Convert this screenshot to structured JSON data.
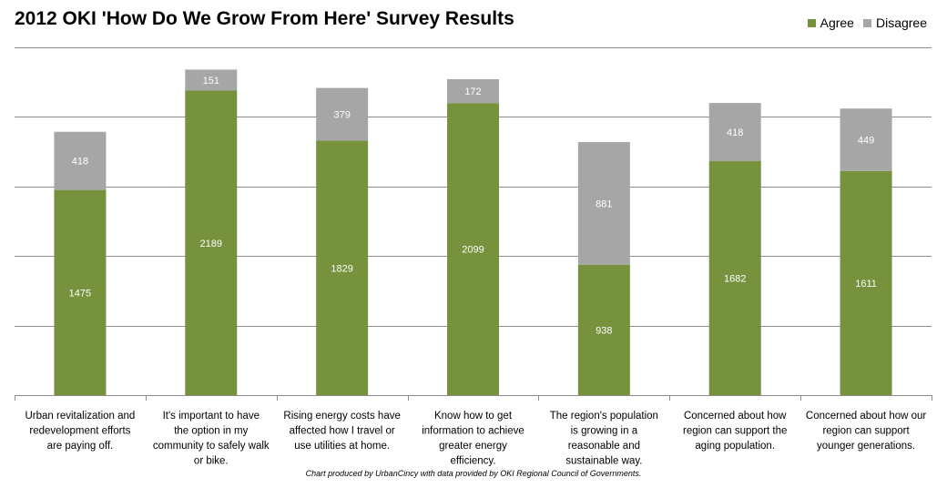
{
  "title": "2012 OKI 'How Do We Grow From Here' Survey Results",
  "footnote": "Chart produced by UrbanCincy with data provided by OKI Regional Council of Governments.",
  "legend": [
    {
      "label": "Agree",
      "color": "#76923c"
    },
    {
      "label": "Disagree",
      "color": "#a6a6a6"
    }
  ],
  "chart_data": {
    "type": "bar",
    "stacked": true,
    "categories": [
      "Urban revitalization and redevelopment efforts are paying off.",
      "It's important to have the option in my community to safely walk or bike.",
      "Rising energy costs have affected how I travel or use utilities at home.",
      "Know how to get information to achieve greater energy efficiency.",
      "The region's population is growing in a reasonable and sustainable way.",
      "Concerned about how region can support the aging population.",
      "Concerned about how our region can support younger generations."
    ],
    "series": [
      {
        "name": "Agree",
        "color": "#76923c",
        "values": [
          1475,
          2189,
          1829,
          2099,
          938,
          1682,
          1611
        ]
      },
      {
        "name": "Disagree",
        "color": "#a6a6a6",
        "values": [
          418,
          151,
          379,
          172,
          881,
          418,
          449
        ]
      }
    ],
    "ylim": [
      0,
      2500
    ],
    "grid": true,
    "y_tick_labels_shown": false,
    "legend_position": "top-right",
    "data_labels": true
  }
}
